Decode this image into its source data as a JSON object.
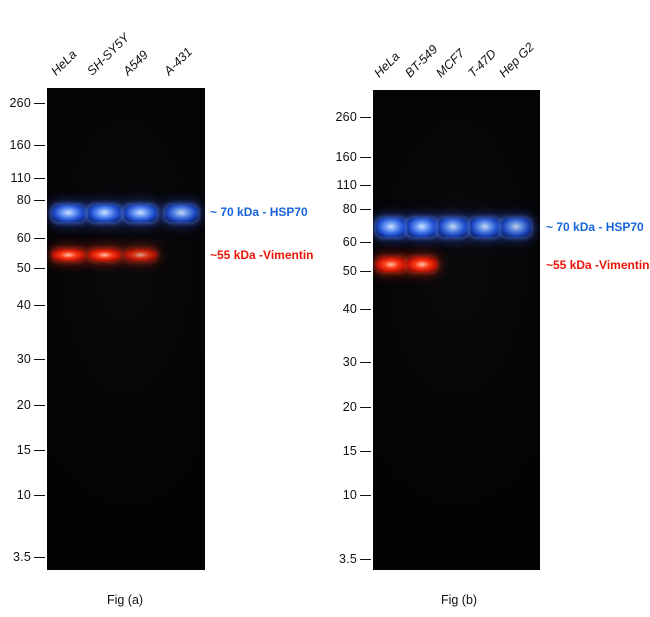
{
  "figures": [
    {
      "id": "a",
      "caption": "Fig (a)",
      "lane_labels": [
        "HeLa",
        "SH-SY5Y",
        "A549",
        "A-431"
      ],
      "mw_markers": [
        "260",
        "160",
        "110",
        "80",
        "60",
        "50",
        "40",
        "30",
        "20",
        "15",
        "10",
        "3.5"
      ],
      "annotations": [
        {
          "name": "hsp70",
          "label": "~ 70 kDa - HSP70",
          "color": "#1565d8"
        },
        {
          "name": "vimentin",
          "label": "~55 kDa -Vimentin",
          "color": "#ea1508"
        }
      ],
      "bands": {
        "hsp70_intensity": [
          1,
          1,
          1,
          0.95
        ],
        "vimentin_intensity": [
          1,
          1,
          0.85,
          0
        ]
      }
    },
    {
      "id": "b",
      "caption": "Fig (b)",
      "lane_labels": [
        "HeLa",
        "BT-549",
        "MCF7",
        "T-47D",
        "Hep G2"
      ],
      "mw_markers": [
        "260",
        "160",
        "110",
        "80",
        "60",
        "50",
        "40",
        "30",
        "20",
        "15",
        "10",
        "3.5"
      ],
      "annotations": [
        {
          "name": "hsp70",
          "label": "~ 70 kDa - HSP70",
          "color": "#1565d8"
        },
        {
          "name": "vimentin",
          "label": "~55 kDa -Vimentin",
          "color": "#ea1508"
        }
      ],
      "bands": {
        "hsp70_intensity": [
          1,
          1,
          0.95,
          0.95,
          0.9
        ],
        "vimentin_intensity": [
          1,
          1,
          0,
          0,
          0
        ]
      }
    }
  ],
  "colors": {
    "hsp70_band": "#2f6fe8",
    "vimentin_band": "#ef1a0a",
    "panel_background": "#050406",
    "text": "#111111"
  }
}
